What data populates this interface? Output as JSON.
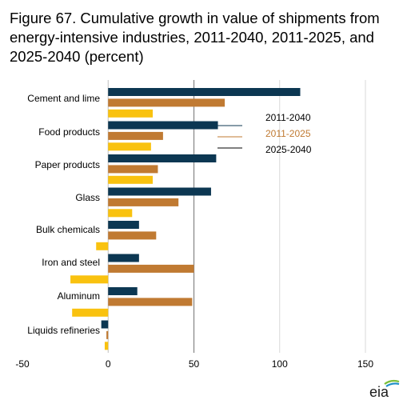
{
  "chart_data": {
    "type": "bar",
    "orientation": "horizontal",
    "title": "Figure 67. Cumulative growth in value of shipments from energy-intensive industries, 2011-2040, 2011-2025, and 2025-2040 (percent)",
    "categories": [
      "Cement and lime",
      "Food products",
      "Paper products",
      "Glass",
      "Bulk chemicals",
      "Iron and steel",
      "Aluminum",
      "Liquids refineries"
    ],
    "series": [
      {
        "name": "2011-2040",
        "color": "#0c3752",
        "values": [
          112,
          64,
          63,
          60,
          18,
          18,
          17,
          -4
        ]
      },
      {
        "name": "2011-2025",
        "color": "#c07a32",
        "values": [
          68,
          32,
          29,
          41,
          28,
          50,
          49,
          -1
        ]
      },
      {
        "name": "2025-2040",
        "color": "#f9c20f",
        "values": [
          26,
          25,
          26,
          14,
          -7,
          -22,
          -21,
          -2
        ]
      }
    ],
    "xlim": [
      -50,
      150
    ],
    "xticks": [
      "-50",
      "0",
      "50",
      "100",
      "150"
    ],
    "grid": true,
    "legend": "inside-top-right"
  }
}
